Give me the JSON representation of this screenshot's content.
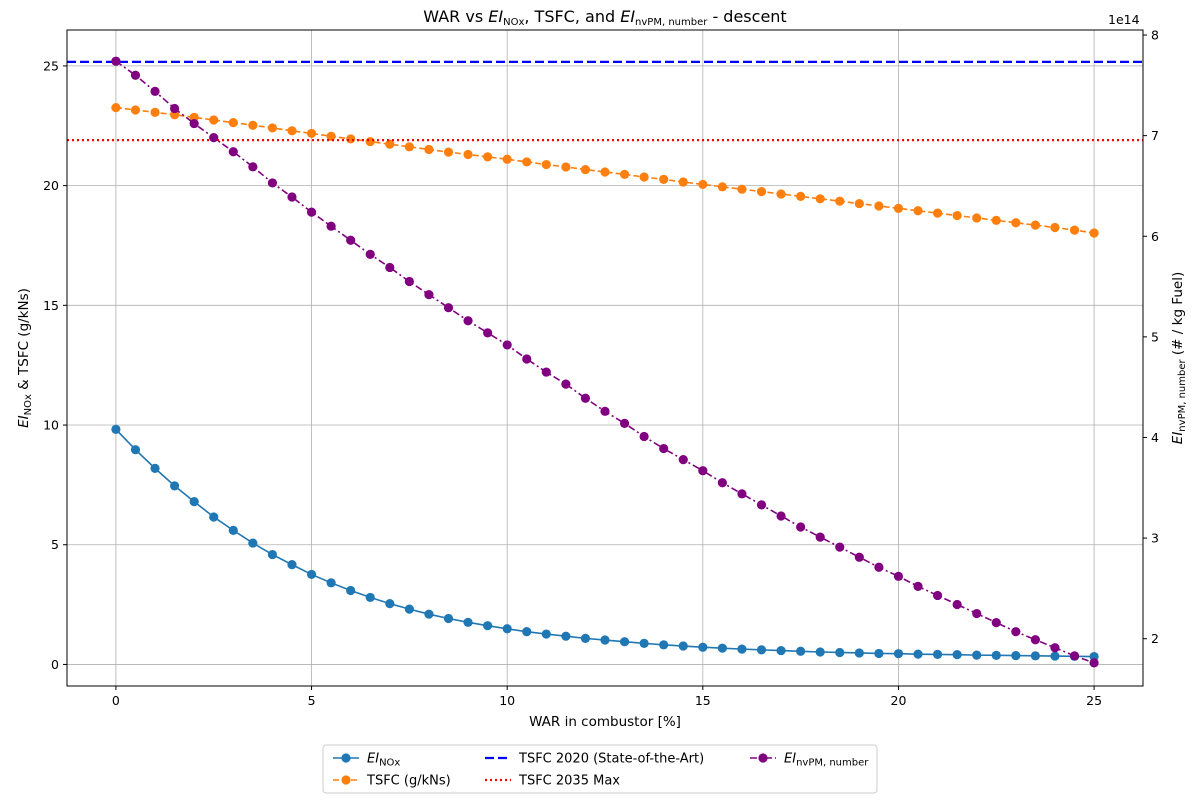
{
  "chart_data": {
    "type": "line",
    "title_parts": [
      "WAR vs ",
      "EI",
      "NOx",
      ", TSFC, and ",
      "EI",
      "nvPM, number",
      " - descent"
    ],
    "xlabel": "WAR in combustor [%]",
    "ylabel_left_parts": [
      "EI",
      "NOx",
      " & TSFC (g/kNs)"
    ],
    "ylabel_right_parts": [
      "EI",
      "nvPM, number",
      " (# / kg Fuel)"
    ],
    "right_axis_offset": "1e14",
    "xlim": [
      -1.25,
      26.25
    ],
    "ylim_left": [
      -0.9,
      26.5
    ],
    "ylim_right": [
      153000000000000.0,
      805000000000000.0
    ],
    "xticks": [
      0,
      5,
      10,
      15,
      20,
      25
    ],
    "yticks_left": [
      0,
      5,
      10,
      15,
      20,
      25
    ],
    "yticks_right": [
      2,
      3,
      4,
      5,
      6,
      7,
      8
    ],
    "grid": true,
    "legend_position": "bottom-center",
    "x": [
      0,
      0.5,
      1,
      1.5,
      2,
      2.5,
      3,
      3.5,
      4,
      4.5,
      5,
      5.5,
      6,
      6.5,
      7,
      7.5,
      8,
      8.5,
      9,
      9.5,
      10,
      10.5,
      11,
      11.5,
      12,
      12.5,
      13,
      13.5,
      14,
      14.5,
      15,
      15.5,
      16,
      16.5,
      17,
      17.5,
      18,
      18.5,
      19,
      19.5,
      20,
      20.5,
      21,
      21.5,
      22,
      22.5,
      23,
      23.5,
      24,
      24.5,
      25
    ],
    "series": [
      {
        "name_parts": [
          "EI",
          "NOx"
        ],
        "axis": "left",
        "color": "#1f77b4",
        "style": "solid",
        "values": [
          9.82,
          8.97,
          8.19,
          7.46,
          6.8,
          6.16,
          5.6,
          5.07,
          4.59,
          4.17,
          3.76,
          3.41,
          3.09,
          2.8,
          2.54,
          2.31,
          2.1,
          1.92,
          1.76,
          1.62,
          1.49,
          1.37,
          1.27,
          1.18,
          1.09,
          1.02,
          0.95,
          0.88,
          0.82,
          0.77,
          0.72,
          0.68,
          0.64,
          0.61,
          0.58,
          0.55,
          0.52,
          0.5,
          0.48,
          0.46,
          0.45,
          0.43,
          0.42,
          0.41,
          0.39,
          0.38,
          0.37,
          0.36,
          0.35,
          0.34,
          0.33
        ]
      },
      {
        "name": "TSFC (g/kNs)",
        "axis": "left",
        "color": "#ff7f0e",
        "style": "dashed",
        "values": [
          23.26,
          23.16,
          23.06,
          22.96,
          22.85,
          22.74,
          22.63,
          22.52,
          22.41,
          22.29,
          22.18,
          22.06,
          21.95,
          21.84,
          21.73,
          21.62,
          21.51,
          21.4,
          21.3,
          21.2,
          21.1,
          20.99,
          20.88,
          20.78,
          20.67,
          20.57,
          20.47,
          20.36,
          20.26,
          20.15,
          20.05,
          19.95,
          19.85,
          19.75,
          19.65,
          19.55,
          19.45,
          19.35,
          19.25,
          19.15,
          19.05,
          18.95,
          18.85,
          18.75,
          18.65,
          18.55,
          18.45,
          18.35,
          18.25,
          18.14,
          18.02
        ]
      },
      {
        "name": "TSFC 2020 (State-of-the-Art)",
        "axis": "left",
        "color": "#0000ff",
        "style": "hline-dashed",
        "value": 25.17
      },
      {
        "name": "TSFC 2035 Max",
        "axis": "left",
        "color": "#ff0000",
        "style": "hline-dotted",
        "value": 21.9
      },
      {
        "name_parts": [
          "EI",
          "nvPM, number"
        ],
        "axis": "right",
        "color": "#800080",
        "style": "dashdot",
        "values": [
          774000000000000.0,
          760000000000000.0,
          744000000000000.0,
          727000000000000.0,
          712000000000000.0,
          698000000000000.0,
          684000000000000.0,
          669000000000000.0,
          653000000000000.0,
          639000000000000.0,
          624000000000000.0,
          610000000000000.0,
          596000000000000.0,
          582000000000000.0,
          569000000000000.0,
          555000000000000.0,
          542000000000000.0,
          529000000000000.0,
          516000000000000.0,
          504000000000000.0,
          492000000000000.0,
          478000000000000.0,
          465000000000000.0,
          453000000000000.0,
          439000000000000.0,
          426000000000000.0,
          414000000000000.0,
          401000000000000.0,
          389000000000000.0,
          378000000000000.0,
          367000000000000.0,
          355000000000000.0,
          344000000000000.0,
          333000000000000.0,
          322000000000000.0,
          311000000000000.0,
          301000000000000.0,
          291000000000000.0,
          281000000000000.0,
          271000000000000.0,
          262000000000000.0,
          252000000000000.0,
          243000000000000.0,
          234000000000000.0,
          225000000000000.0,
          216000000000000.0,
          207000000000000.0,
          199000000000000.0,
          191000000000000.0,
          183000000000000.0,
          176000000000000.0
        ]
      }
    ]
  }
}
